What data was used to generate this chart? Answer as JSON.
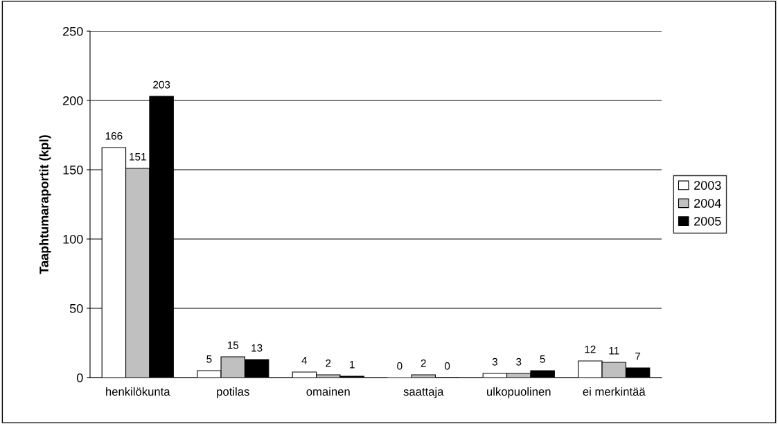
{
  "chart_data": {
    "type": "bar",
    "ylabel": "Taaphtumaraportit (kpl)",
    "categories": [
      "henkilökunta",
      "potilas",
      "omainen",
      "saattaja",
      "ulkopuolinen",
      "ei merkintää"
    ],
    "series": [
      {
        "name": "2003",
        "color": "#ffffff",
        "values": [
          166,
          5,
          4,
          0,
          3,
          12
        ]
      },
      {
        "name": "2004",
        "color": "#c0c0c0",
        "values": [
          151,
          15,
          2,
          2,
          3,
          11
        ]
      },
      {
        "name": "2005",
        "color": "#000000",
        "values": [
          203,
          13,
          1,
          0,
          5,
          7
        ]
      }
    ],
    "ylim": [
      0,
      250
    ],
    "yticks": [
      0,
      50,
      100,
      150,
      200,
      250
    ],
    "grid": "y",
    "legend": "right",
    "data_labels": true
  }
}
